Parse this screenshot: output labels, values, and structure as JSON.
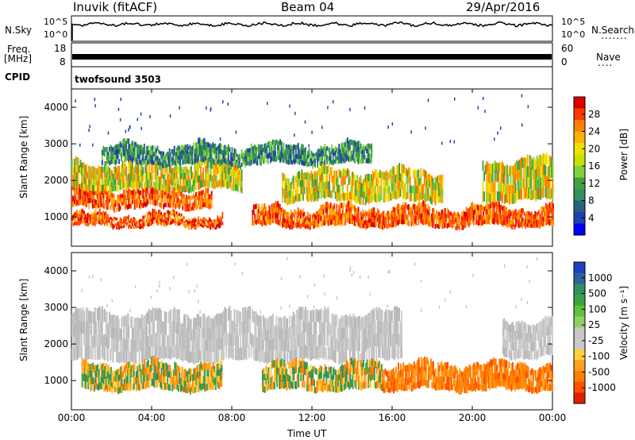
{
  "header": {
    "station": "Inuvik (fitACF)",
    "beam": "Beam 04",
    "date": "29/Apr/2016"
  },
  "side_labels": {
    "nsky": "N.Sky",
    "nsearch": "N.Search",
    "nsearch_dots": ".......",
    "freq_line1": "Freq.",
    "freq_line2": "[MHz]",
    "nave": "Nave",
    "nave_dots": "....",
    "cpid": "CPID",
    "cpid_value": "twofsound 3503"
  },
  "strip_ticks": {
    "nsky_left": [
      "10^5",
      "10^0"
    ],
    "nsearch_right": [
      "10^5",
      "10^0"
    ],
    "freq_left": [
      "18",
      "8"
    ],
    "nave_right": [
      "60",
      "0"
    ]
  },
  "chart_data": [
    {
      "type": "heatmap",
      "name": "power",
      "ylabel": "Slant Range [km]",
      "xlabel": "Time UT",
      "x_ticks": [
        "00:00",
        "04:00",
        "08:00",
        "12:00",
        "16:00",
        "20:00",
        "00:00"
      ],
      "y_ticks": [
        1000,
        2000,
        3000,
        4000
      ],
      "ylim": [
        200,
        4500
      ],
      "colorbar": {
        "label": "Power [dB]",
        "tick_labels": [
          "28",
          "24",
          "20",
          "16",
          "12",
          "8",
          "4"
        ],
        "colors": [
          "#e00000",
          "#ff3a00",
          "#ff8000",
          "#ffb000",
          "#f0e000",
          "#c8e000",
          "#80d040",
          "#40a040",
          "#309060",
          "#2a6080",
          "#2040b0",
          "#0000ff"
        ]
      },
      "bands": [
        {
          "start_h": 0.0,
          "end_h": 7.5,
          "range_lo": 700,
          "range_hi": 1000,
          "level": "high"
        },
        {
          "start_h": 0.0,
          "end_h": 7.0,
          "range_lo": 1200,
          "range_hi": 1700,
          "level": "high"
        },
        {
          "start_h": 0.0,
          "end_h": 8.5,
          "range_lo": 1700,
          "range_hi": 2400,
          "level": "mid"
        },
        {
          "start_h": 1.5,
          "end_h": 15.0,
          "range_lo": 2400,
          "range_hi": 2900,
          "level": "low"
        },
        {
          "start_h": 9.0,
          "end_h": 24.0,
          "range_lo": 700,
          "range_hi": 1200,
          "level": "high"
        },
        {
          "start_h": 10.5,
          "end_h": 18.5,
          "range_lo": 1400,
          "range_hi": 2200,
          "level": "mid"
        },
        {
          "start_h": 20.5,
          "end_h": 24.0,
          "range_lo": 1400,
          "range_hi": 2500,
          "level": "mid"
        }
      ]
    },
    {
      "type": "heatmap",
      "name": "velocity",
      "ylabel": "Slant Range [km]",
      "xlabel": "Time UT",
      "x_ticks": [
        "00:00",
        "04:00",
        "08:00",
        "12:00",
        "16:00",
        "20:00",
        "00:00"
      ],
      "y_ticks": [
        1000,
        2000,
        3000,
        4000
      ],
      "ylim": [
        200,
        4500
      ],
      "colorbar": {
        "label": "Velocity [m s⁻¹]",
        "tick_labels": [
          "1000",
          "500",
          "100",
          "25",
          "-25",
          "-100",
          "-500",
          "-1000"
        ],
        "colors": [
          "#2040c0",
          "#3060a0",
          "#309060",
          "#40a040",
          "#60c040",
          "#90d060",
          "#c8c8c8",
          "#c8c8c8",
          "#ffd040",
          "#ffa020",
          "#ff8000",
          "#ff5000",
          "#e02000"
        ]
      },
      "bands": [
        {
          "start_h": 0.0,
          "end_h": 16.5,
          "range_lo": 1500,
          "range_hi": 2800,
          "level": "ground"
        },
        {
          "start_h": 0.5,
          "end_h": 7.5,
          "range_lo": 700,
          "range_hi": 1400,
          "level": "toward"
        },
        {
          "start_h": 9.5,
          "end_h": 15.5,
          "range_lo": 700,
          "range_hi": 1400,
          "level": "toward"
        },
        {
          "start_h": 15.5,
          "end_h": 24.0,
          "range_lo": 700,
          "range_hi": 1400,
          "level": "away"
        },
        {
          "start_h": 21.5,
          "end_h": 24.0,
          "range_lo": 1600,
          "range_hi": 2600,
          "level": "ground"
        }
      ]
    }
  ]
}
